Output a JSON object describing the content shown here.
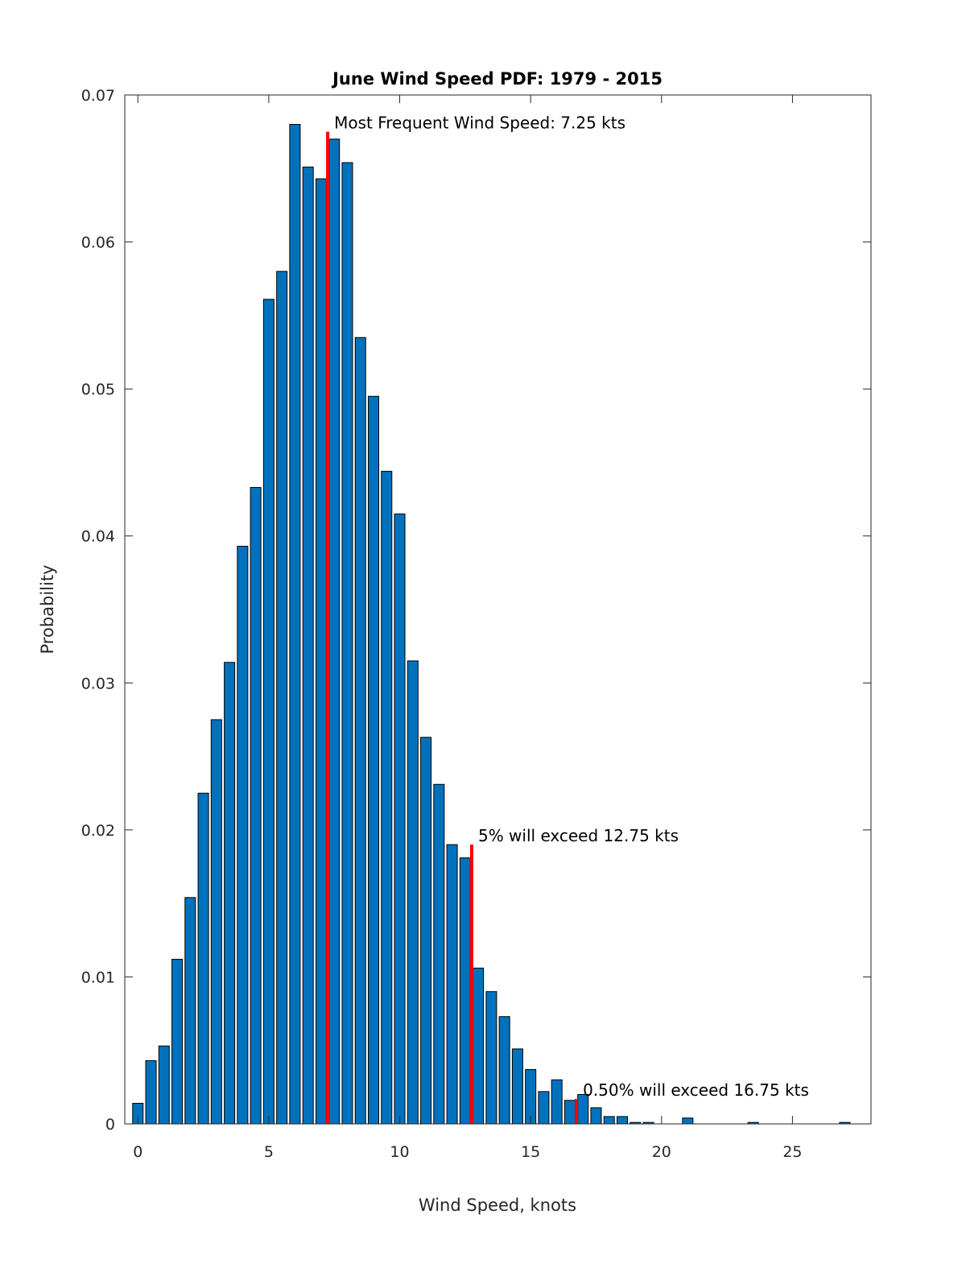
{
  "chart_data": {
    "type": "bar",
    "title": "June Wind Speed PDF: 1979 - 2015",
    "xlabel": "Wind Speed, knots",
    "ylabel": "Probability",
    "xlim": [
      -0.5,
      28
    ],
    "ylim": [
      0,
      0.07
    ],
    "xticks": [
      0,
      5,
      10,
      15,
      20,
      25
    ],
    "xtick_labels": [
      "0",
      "5",
      "10",
      "15",
      "20",
      "25"
    ],
    "yticks": [
      0,
      0.01,
      0.02,
      0.03,
      0.04,
      0.05,
      0.06,
      0.07
    ],
    "ytick_labels": [
      "0",
      "0.01",
      "0.02",
      "0.03",
      "0.04",
      "0.05",
      "0.06",
      "0.07"
    ],
    "grid": false,
    "bar_color": "#0072BD",
    "bar_width": 0.4,
    "x": [
      0,
      0.5,
      1,
      1.5,
      2,
      2.5,
      3,
      3.5,
      4,
      4.5,
      5,
      5.5,
      6,
      6.5,
      7,
      7.5,
      8,
      8.5,
      9,
      9.5,
      10,
      10.5,
      11,
      11.5,
      12,
      12.5,
      13,
      13.5,
      14,
      14.5,
      15,
      15.5,
      16,
      16.5,
      17,
      17.5,
      18,
      18.5,
      19,
      19.5,
      21,
      23.5,
      27
    ],
    "values": [
      0.0014,
      0.0043,
      0.0053,
      0.0112,
      0.0154,
      0.0225,
      0.0275,
      0.0314,
      0.0393,
      0.0433,
      0.0561,
      0.058,
      0.068,
      0.0651,
      0.0643,
      0.067,
      0.0654,
      0.0535,
      0.0495,
      0.0444,
      0.0415,
      0.0315,
      0.0263,
      0.0231,
      0.019,
      0.0181,
      0.0106,
      0.009,
      0.0073,
      0.0051,
      0.0037,
      0.0022,
      0.003,
      0.0016,
      0.002,
      0.0011,
      0.0005,
      0.0005,
      0.0001,
      0.0001,
      0.0004,
      0.0001,
      0.0001
    ],
    "markers": [
      {
        "x": 7.25,
        "y_top": 0.0675,
        "label": "Most Frequent Wind Speed: 7.25 kts",
        "color": "#FF0000"
      },
      {
        "x": 12.75,
        "y_top": 0.019,
        "label": "5% will exceed 12.75 kts",
        "color": "#FF0000"
      },
      {
        "x": 16.75,
        "y_top": 0.0017,
        "label": "0.50% will exceed 16.75 kts",
        "color": "#FF0000"
      }
    ]
  }
}
